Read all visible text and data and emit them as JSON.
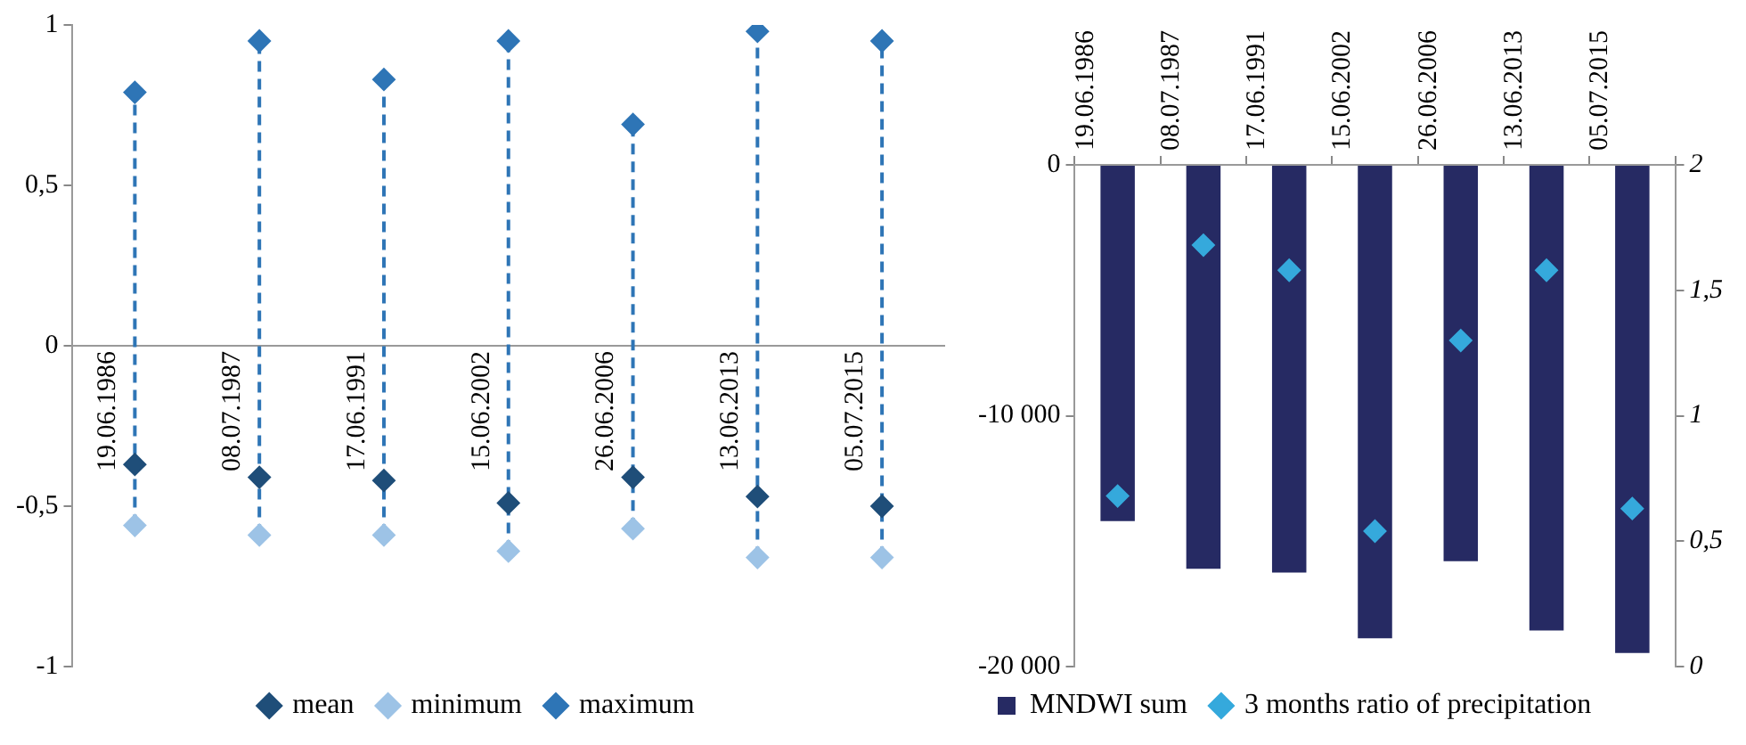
{
  "chart_data": [
    {
      "type": "scatter",
      "categories": [
        "19.06.1986",
        "08.07.1987",
        "17.06.1991",
        "15.06.2002",
        "26.06.2006",
        "13.06.2013",
        "05.07.2015"
      ],
      "series": [
        {
          "name": "mean",
          "color": "#1f4e79",
          "values": [
            -0.37,
            -0.41,
            -0.42,
            -0.49,
            -0.41,
            -0.47,
            -0.5
          ]
        },
        {
          "name": "minimum",
          "color": "#9dc3e6",
          "values": [
            -0.56,
            -0.59,
            -0.59,
            -0.64,
            -0.57,
            -0.66,
            -0.66
          ]
        },
        {
          "name": "maximum",
          "color": "#2e75b6",
          "values": [
            0.79,
            0.95,
            0.83,
            0.95,
            0.69,
            0.98,
            0.95
          ]
        }
      ],
      "ylim": [
        -1,
        1
      ],
      "yticks": [
        {
          "value": -1,
          "label": "-1"
        },
        {
          "value": -0.5,
          "label": "-0,5"
        },
        {
          "value": 0,
          "label": "0"
        },
        {
          "value": 0.5,
          "label": "0,5"
        },
        {
          "value": 1,
          "label": "1"
        }
      ],
      "marker": "diamond",
      "line_style": "dashed",
      "grid": false,
      "legend": "bottom"
    },
    {
      "type": "bar",
      "categories": [
        "19.06.1986",
        "08.07.1987",
        "17.06.1991",
        "15.06.2002",
        "26.06.2006",
        "13.06.2013",
        "05.07.2015"
      ],
      "series": [
        {
          "name": "MNDWI sum",
          "color": "#262a63",
          "values": [
            -14200,
            -16100,
            -16250,
            -18870,
            -15800,
            -18560,
            -19460
          ]
        },
        {
          "name": "3 months ratio of precipitation",
          "type": "scatter",
          "axis": "y2",
          "color": "#35a9dc",
          "values": [
            0.68,
            1.68,
            1.58,
            0.54,
            1.3,
            1.58,
            0.63
          ]
        }
      ],
      "ylim": [
        -20000,
        0
      ],
      "yticks": [
        {
          "value": -20000,
          "label": "-20 000"
        },
        {
          "value": -10000,
          "label": "-10 000"
        },
        {
          "value": 0,
          "label": "0"
        }
      ],
      "y2lim": [
        0,
        2
      ],
      "y2ticks": [
        {
          "value": 0,
          "label": "0"
        },
        {
          "value": 0.5,
          "label": "0,5"
        },
        {
          "value": 1,
          "label": "1"
        },
        {
          "value": 1.5,
          "label": "1,5"
        },
        {
          "value": 2,
          "label": "2"
        }
      ],
      "marker": "diamond",
      "grid": false,
      "legend": "bottom left"
    }
  ]
}
